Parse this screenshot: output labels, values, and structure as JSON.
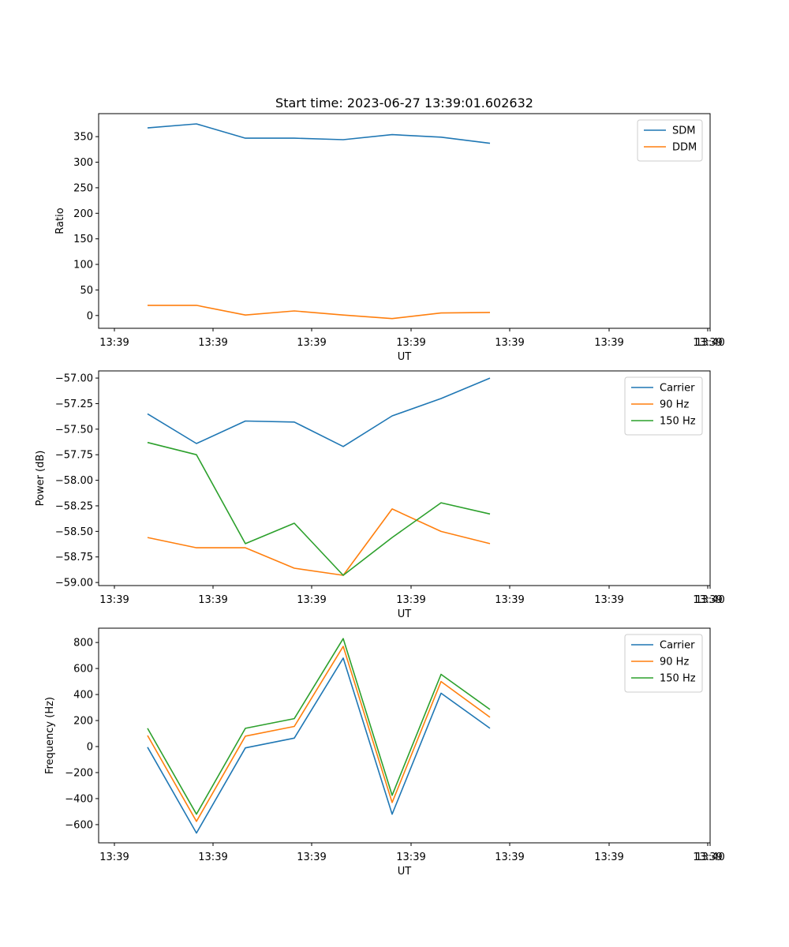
{
  "title": "Start time: 2023-06-27 13:39:01.602632",
  "colors": {
    "blue": "#1f77b4",
    "orange": "#ff7f0e",
    "green": "#2ca02c"
  },
  "chart_data": [
    {
      "type": "line",
      "xlabel": "UT",
      "ylabel": "Ratio",
      "x_tick_labels": [
        "13:39",
        "13:39",
        "13:39",
        "13:39",
        "13:39",
        "13:39",
        "13:39",
        "13:40"
      ],
      "x": [
        1,
        2,
        3,
        4,
        5,
        6,
        7,
        8
      ],
      "xlim": [
        0,
        12.5
      ],
      "ylim": [
        -25,
        395
      ],
      "yticks": [
        0,
        50,
        100,
        150,
        200,
        250,
        300,
        350
      ],
      "ytick_labels": [
        "0",
        "50",
        "100",
        "150",
        "200",
        "250",
        "300",
        "350"
      ],
      "legend": "top-right",
      "series": [
        {
          "name": "SDM",
          "color": "#1f77b4",
          "values": [
            367,
            375,
            347,
            347,
            344,
            354,
            349,
            337
          ]
        },
        {
          "name": "DDM",
          "color": "#ff7f0e",
          "values": [
            20,
            20,
            1,
            9,
            1,
            -6,
            5,
            6
          ]
        }
      ]
    },
    {
      "type": "line",
      "xlabel": "UT",
      "ylabel": "Power (dB)",
      "x_tick_labels": [
        "13:39",
        "13:39",
        "13:39",
        "13:39",
        "13:39",
        "13:39",
        "13:39",
        "13:40"
      ],
      "x": [
        1,
        2,
        3,
        4,
        5,
        6,
        7,
        8
      ],
      "xlim": [
        0,
        12.5
      ],
      "ylim": [
        -59.03,
        -56.93
      ],
      "yticks": [
        -59.0,
        -58.75,
        -58.5,
        -58.25,
        -58.0,
        -57.75,
        -57.5,
        -57.25,
        -57.0
      ],
      "ytick_labels": [
        "−59.00",
        "−58.75",
        "−58.50",
        "−58.25",
        "−58.00",
        "−57.75",
        "−57.50",
        "−57.25",
        "−57.00"
      ],
      "legend": "top-right",
      "series": [
        {
          "name": "Carrier",
          "color": "#1f77b4",
          "values": [
            -57.35,
            -57.64,
            -57.42,
            -57.43,
            -57.67,
            -57.37,
            -57.2,
            -57.0
          ]
        },
        {
          "name": "90 Hz",
          "color": "#ff7f0e",
          "values": [
            -58.56,
            -58.66,
            -58.66,
            -58.86,
            -58.93,
            -58.28,
            -58.5,
            -58.62
          ]
        },
        {
          "name": "150 Hz",
          "color": "#2ca02c",
          "values": [
            -57.63,
            -57.75,
            -58.62,
            -58.42,
            -58.93,
            -58.56,
            -58.22,
            -58.33
          ]
        }
      ]
    },
    {
      "type": "line",
      "xlabel": "UT",
      "ylabel": "Frequency (Hz)",
      "x_tick_labels": [
        "13:39",
        "13:39",
        "13:39",
        "13:39",
        "13:39",
        "13:39",
        "13:39",
        "13:40"
      ],
      "x": [
        1,
        2,
        3,
        4,
        5,
        6,
        7,
        8
      ],
      "xlim": [
        0,
        12.5
      ],
      "ylim": [
        -740,
        910
      ],
      "yticks": [
        -600,
        -400,
        -200,
        0,
        200,
        400,
        600,
        800
      ],
      "ytick_labels": [
        "−600",
        "−400",
        "−200",
        "0",
        "200",
        "400",
        "600",
        "800"
      ],
      "legend": "top-right",
      "series": [
        {
          "name": "Carrier",
          "color": "#1f77b4",
          "values": [
            -5,
            -665,
            -10,
            65,
            680,
            -520,
            410,
            140
          ]
        },
        {
          "name": "90 Hz",
          "color": "#ff7f0e",
          "values": [
            85,
            -575,
            80,
            155,
            770,
            -430,
            500,
            225
          ]
        },
        {
          "name": "150 Hz",
          "color": "#2ca02c",
          "values": [
            140,
            -520,
            140,
            215,
            830,
            -375,
            555,
            285
          ]
        }
      ]
    }
  ]
}
